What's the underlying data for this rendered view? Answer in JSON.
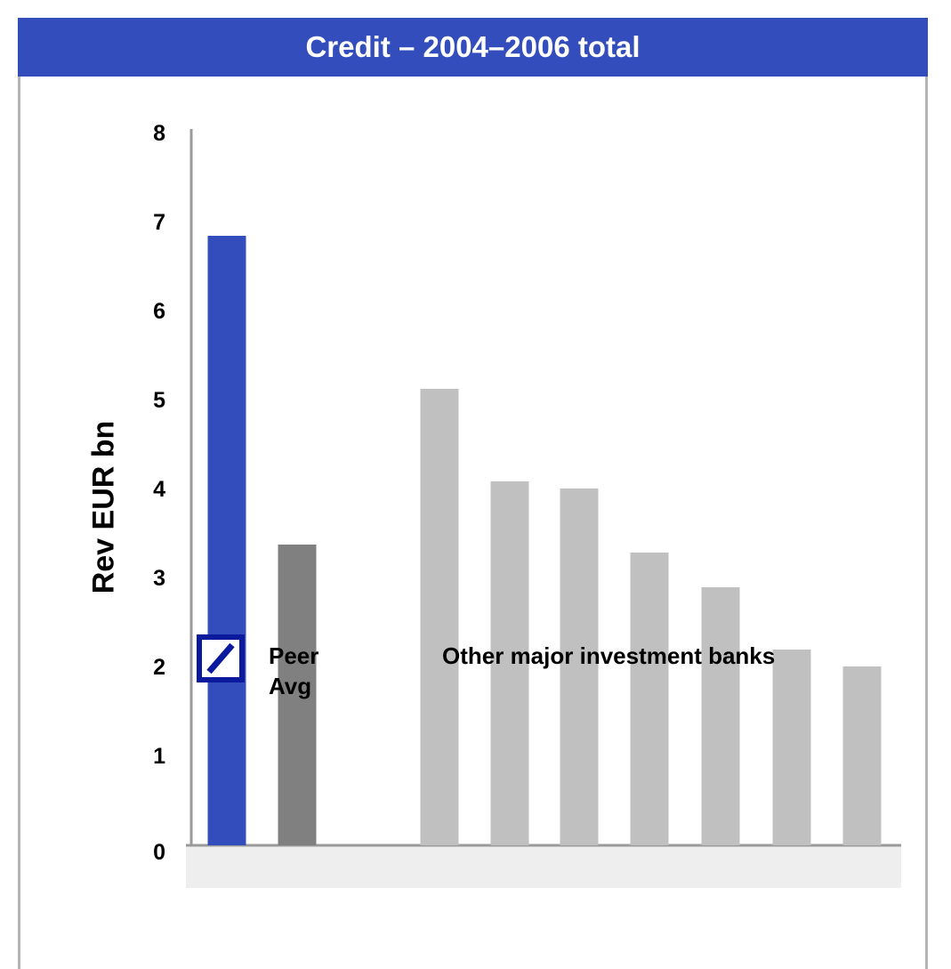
{
  "header": {
    "title": "Credit – 2004–2006 total"
  },
  "colors": {
    "header_bg": "#344dbc",
    "deutsche_bank": "#344dbc",
    "peer_avg": "#808080",
    "other_banks": "#c0c0c0",
    "logo": "#0b1a9c"
  },
  "logo": {
    "icon": "deutsche-bank-logo-icon"
  },
  "chart_data": {
    "type": "bar",
    "title": "Credit – 2004–2006 total",
    "ylabel": "Rev EUR bn",
    "xlabel": "",
    "ylim": [
      0,
      8
    ],
    "yticks": [
      0,
      1,
      2,
      3,
      4,
      5,
      6,
      7,
      8
    ],
    "grid": false,
    "group_labels": {
      "peer": "Peer\nAvg",
      "others": "Other major investment banks"
    },
    "bars": [
      {
        "group": "deutsche_bank",
        "value": 6.85
      },
      {
        "group": "peer_avg",
        "value": 3.38
      },
      {
        "group": "other",
        "value": 5.13
      },
      {
        "group": "other",
        "value": 4.09
      },
      {
        "group": "other",
        "value": 4.01
      },
      {
        "group": "other",
        "value": 3.29
      },
      {
        "group": "other",
        "value": 2.9
      },
      {
        "group": "other",
        "value": 2.2
      },
      {
        "group": "other",
        "value": 2.01
      }
    ]
  }
}
